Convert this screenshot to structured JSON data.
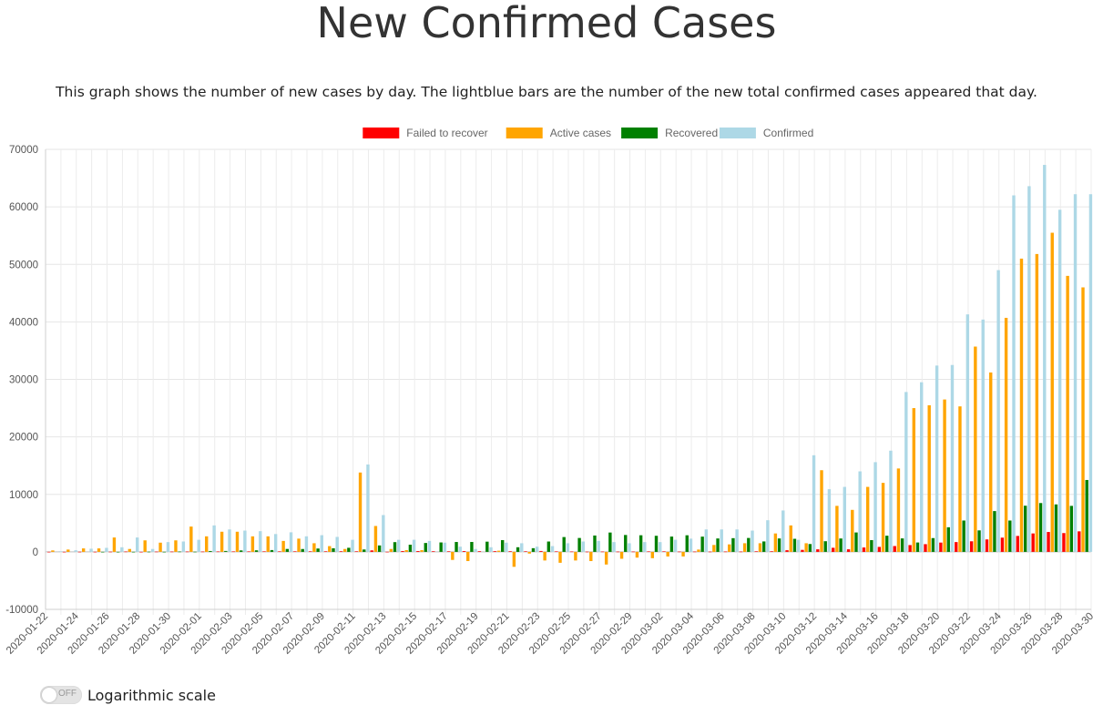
{
  "title": "New Confirmed Cases",
  "subtitle": "This graph shows the number of new cases by day. The lightblue bars are the number of the new total confirmed cases appeared that day.",
  "log_toggle": {
    "state": "OFF",
    "label": "Logarithmic scale"
  },
  "chart_data": {
    "type": "bar",
    "title": "New Confirmed Cases",
    "xlabel": "",
    "ylabel": "",
    "ylim": [
      -10000,
      70000
    ],
    "yticks": [
      70000,
      60000,
      50000,
      40000,
      30000,
      20000,
      10000,
      0,
      -10000
    ],
    "grid": true,
    "legend_position": "top-center",
    "tick_labels": [
      "2020-01-22",
      "2020-01-24",
      "2020-01-26",
      "2020-01-28",
      "2020-01-30",
      "2020-02-01",
      "2020-02-03",
      "2020-02-05",
      "2020-02-07",
      "2020-02-09",
      "2020-02-11",
      "2020-02-13",
      "2020-02-15",
      "2020-02-17",
      "2020-02-19",
      "2020-02-21",
      "2020-02-23",
      "2020-02-25",
      "2020-02-27",
      "2020-02-29",
      "2020-03-02",
      "2020-03-04",
      "2020-03-06",
      "2020-03-08",
      "2020-03-10",
      "2020-03-12",
      "2020-03-14",
      "2020-03-16",
      "2020-03-18",
      "2020-03-20",
      "2020-03-22",
      "2020-03-24",
      "2020-03-26",
      "2020-03-28",
      "2020-03-30"
    ],
    "categories": [
      "2020-01-22",
      "2020-01-23",
      "2020-01-24",
      "2020-01-25",
      "2020-01-26",
      "2020-01-27",
      "2020-01-28",
      "2020-01-29",
      "2020-01-30",
      "2020-01-31",
      "2020-02-01",
      "2020-02-02",
      "2020-02-03",
      "2020-02-04",
      "2020-02-05",
      "2020-02-06",
      "2020-02-07",
      "2020-02-08",
      "2020-02-09",
      "2020-02-10",
      "2020-02-11",
      "2020-02-12",
      "2020-02-13",
      "2020-02-14",
      "2020-02-15",
      "2020-02-16",
      "2020-02-17",
      "2020-02-18",
      "2020-02-19",
      "2020-02-20",
      "2020-02-21",
      "2020-02-22",
      "2020-02-23",
      "2020-02-24",
      "2020-02-25",
      "2020-02-26",
      "2020-02-27",
      "2020-02-28",
      "2020-02-29",
      "2020-03-01",
      "2020-03-02",
      "2020-03-03",
      "2020-03-04",
      "2020-03-05",
      "2020-03-06",
      "2020-03-07",
      "2020-03-08",
      "2020-03-09",
      "2020-03-10",
      "2020-03-11",
      "2020-03-12",
      "2020-03-13",
      "2020-03-14",
      "2020-03-15",
      "2020-03-16",
      "2020-03-17",
      "2020-03-18",
      "2020-03-19",
      "2020-03-20",
      "2020-03-21",
      "2020-03-22",
      "2020-03-23",
      "2020-03-24",
      "2020-03-25",
      "2020-03-26",
      "2020-03-27",
      "2020-03-28",
      "2020-03-29",
      "2020-03-30"
    ],
    "series": [
      {
        "name": "Failed to recover",
        "color": "#ff0000",
        "values": [
          0,
          8,
          8,
          16,
          14,
          26,
          49,
          2,
          38,
          43,
          46,
          45,
          57,
          64,
          66,
          73,
          73,
          86,
          89,
          97,
          108,
          97,
          254,
          13,
          143,
          142,
          106,
          98,
          136,
          115,
          118,
          109,
          97,
          150,
          71,
          52,
          29,
          44,
          38,
          43,
          67,
          73,
          42,
          45,
          35,
          50,
          45,
          97,
          105,
          286,
          345,
          442,
          710,
          445,
          761,
          862,
          1012,
          1180,
          1340,
          1614,
          1702,
          1838,
          2163,
          2474,
          2768,
          3205,
          3458,
          3269,
          3569
        ]
      },
      {
        "name": "Active cases",
        "color": "#ffa500",
        "values": [
          0,
          250,
          400,
          600,
          600,
          2500,
          500,
          2000,
          1600,
          2000,
          4400,
          2700,
          3500,
          3500,
          2700,
          2700,
          1900,
          2300,
          1500,
          1000,
          500,
          13800,
          4500,
          500,
          300,
          300,
          0,
          -1400,
          -1600,
          0,
          200,
          -2600,
          -300,
          -1500,
          -1900,
          -1500,
          -1600,
          -2200,
          -1200,
          -1000,
          -1100,
          -800,
          -800,
          400,
          1200,
          1300,
          1500,
          1500,
          3200,
          4600,
          1500,
          14200,
          8000,
          7300,
          11300,
          12000,
          14500,
          25000,
          25500,
          26500,
          25300,
          35700,
          31200,
          40700,
          51000,
          51800,
          55500,
          48000,
          46000
        ]
      },
      {
        "name": "Recovered",
        "color": "#008000",
        "values": [
          0,
          0,
          0,
          0,
          3,
          2,
          5,
          24,
          9,
          43,
          21,
          147,
          157,
          250,
          269,
          312,
          505,
          495,
          582,
          626,
          710,
          412,
          1118,
          1691,
          1248,
          1542,
          1640,
          1717,
          1722,
          1774,
          2041,
          802,
          638,
          1799,
          2575,
          2415,
          2844,
          3362,
          2936,
          2888,
          2795,
          2660,
          2884,
          2650,
          2330,
          2383,
          2417,
          1812,
          2332,
          2272,
          1362,
          1851,
          2326,
          3373,
          2044,
          2811,
          2340,
          1629,
          2395,
          4279,
          5453,
          3736,
          7094,
          5449,
          8027,
          8491,
          8253,
          8000,
          12500
        ]
      },
      {
        "name": "Confirmed",
        "color": "#add8e6",
        "values": [
          0,
          100,
          280,
          550,
          700,
          800,
          2500,
          500,
          1700,
          1800,
          2100,
          4600,
          3900,
          3700,
          3600,
          3100,
          3400,
          2700,
          2900,
          2600,
          2100,
          15200,
          6400,
          2100,
          2100,
          1900,
          1600,
          900,
          500,
          800,
          1600,
          1500,
          900,
          1000,
          1500,
          1800,
          1900,
          1700,
          1500,
          1700,
          1700,
          2100,
          2300,
          3900,
          3900,
          3900,
          3700,
          5500,
          7200,
          2100,
          16800,
          10900,
          11300,
          14000,
          15600,
          17600,
          27800,
          29500,
          32400,
          32500,
          41300,
          40400,
          49000,
          62000,
          63600,
          67300,
          59500,
          62200,
          62200
        ]
      }
    ]
  }
}
